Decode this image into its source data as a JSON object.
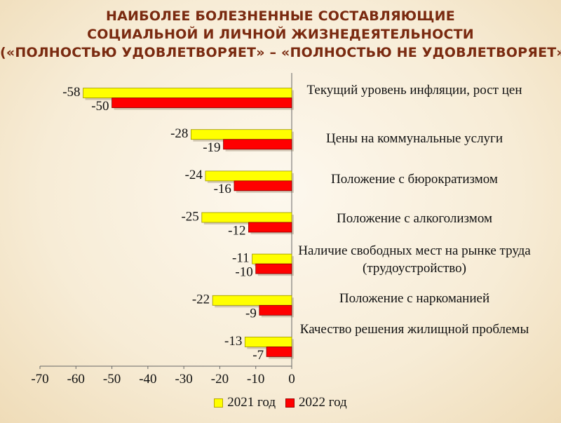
{
  "title_lines": [
    "НАИБОЛЕЕ БОЛЕЗНЕННЫЕ СОСТАВЛЯЮЩИЕ",
    "СОЦИАЛЬНОЙ И ЛИЧНОЙ ЖИЗНЕДЕЯТЕЛЬНОСТИ",
    "(«ПОЛНОСТЬЮ УДОВЛЕТВОРЯЕТ» – «ПОЛНОСТЬЮ НЕ УДОВЛЕТВОРЯЕТ»)"
  ],
  "colors": {
    "series_2021": "#ffff00",
    "series_2022": "#ff0000",
    "title": "#7a2a10"
  },
  "chart_data": {
    "type": "bar",
    "orientation": "horizontal",
    "categories": [
      "Текущий уровень инфляции, рост цен",
      "Цены на коммунальные услуги",
      "Положение с бюрократизмом",
      "Положение с алкоголизмом",
      "Наличие свободных мест на рынке труда (трудоустройство)",
      "Положение с наркоманией",
      "Качество решения жилищной проблемы"
    ],
    "series": [
      {
        "name": "2021 год",
        "values": [
          -58,
          -28,
          -24,
          -25,
          -11,
          -22,
          -13
        ]
      },
      {
        "name": "2022 год",
        "values": [
          -50,
          -19,
          -16,
          -12,
          -10,
          -9,
          -7
        ]
      }
    ],
    "xlim": [
      -70,
      0
    ],
    "xticks": [
      -70,
      -60,
      -50,
      -40,
      -30,
      -20,
      -10,
      0
    ],
    "grid": false,
    "legend": "bottom"
  }
}
